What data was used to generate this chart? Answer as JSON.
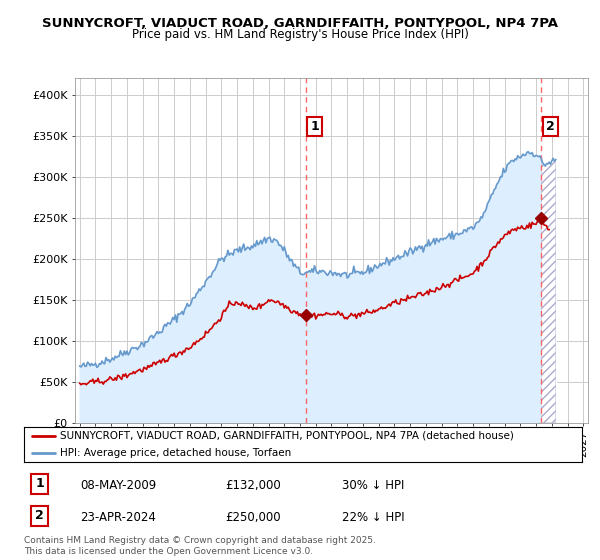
{
  "title": "SUNNYCROFT, VIADUCT ROAD, GARNDIFFAITH, PONTYPOOL, NP4 7PA",
  "subtitle": "Price paid vs. HM Land Registry's House Price Index (HPI)",
  "legend_line1": "SUNNYCROFT, VIADUCT ROAD, GARNDIFFAITH, PONTYPOOL, NP4 7PA (detached house)",
  "legend_line2": "HPI: Average price, detached house, Torfaen",
  "annotation1_label": "1",
  "annotation1_date": "08-MAY-2009",
  "annotation1_price": "£132,000",
  "annotation1_hpi": "30% ↓ HPI",
  "annotation2_label": "2",
  "annotation2_date": "23-APR-2024",
  "annotation2_price": "£250,000",
  "annotation2_hpi": "22% ↓ HPI",
  "footer": "Contains HM Land Registry data © Crown copyright and database right 2025.\nThis data is licensed under the Open Government Licence v3.0.",
  "hpi_color": "#6699CC",
  "price_color": "#CC0000",
  "marker_color": "#990000",
  "bg_color": "#FFFFFF",
  "grid_color": "#CCCCCC",
  "vline_color": "#FF6666",
  "hpi_fill_color": "#DDEEFF",
  "ylim": [
    0,
    420000
  ],
  "yticks": [
    0,
    50000,
    100000,
    150000,
    200000,
    250000,
    300000,
    350000,
    400000
  ],
  "xlim_start": 1994.7,
  "xlim_end": 2027.3,
  "sale1_x": 2009.37,
  "sale1_y": 132000,
  "sale2_x": 2024.32,
  "sale2_y": 250000
}
